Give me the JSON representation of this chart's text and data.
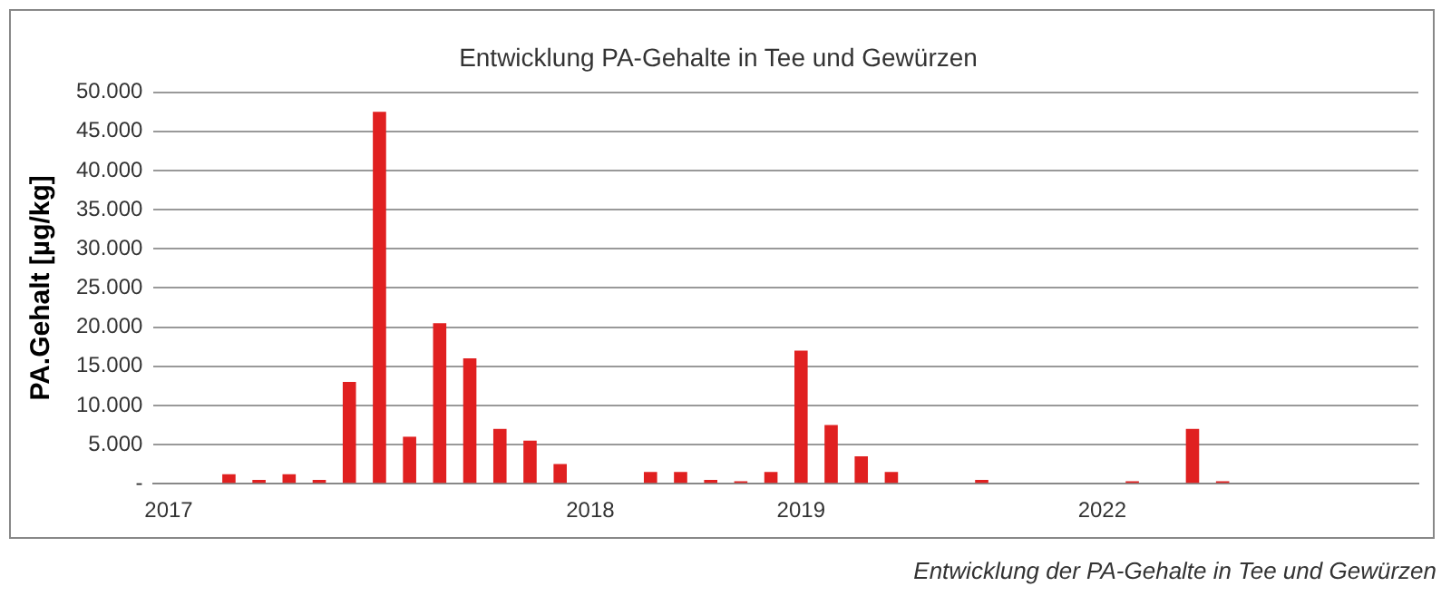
{
  "chart_data": {
    "type": "bar",
    "title": "Entwicklung PA-Gehalte in Tee und Gewürzen",
    "ylabel": "PA.Gehalt [µg/kg]",
    "categories": [
      "2017",
      null,
      null,
      null,
      null,
      null,
      null,
      null,
      null,
      null,
      null,
      null,
      null,
      null,
      "2018",
      null,
      null,
      null,
      null,
      null,
      null,
      "2019",
      null,
      null,
      null,
      null,
      null,
      null,
      null,
      null,
      null,
      "2022",
      null,
      null,
      null,
      null,
      null,
      null,
      null,
      null,
      null,
      null
    ],
    "values": [
      0,
      0,
      1200,
      500,
      1200,
      500,
      13000,
      47500,
      6000,
      20500,
      16000,
      7000,
      5500,
      2500,
      0,
      0,
      1500,
      1500,
      500,
      300,
      1500,
      17000,
      7500,
      3500,
      1500,
      0,
      0,
      500,
      0,
      0,
      0,
      0,
      300,
      0,
      7000,
      300,
      0,
      0,
      0,
      0,
      0,
      0
    ],
    "color": "#e02020",
    "ylim": [
      0,
      50000
    ],
    "yticks": [
      {
        "value": 0,
        "label": "-"
      },
      {
        "value": 5000,
        "label": "5.000"
      },
      {
        "value": 10000,
        "label": "10.000"
      },
      {
        "value": 15000,
        "label": "15.000"
      },
      {
        "value": 20000,
        "label": "20.000"
      },
      {
        "value": 25000,
        "label": "25.000"
      },
      {
        "value": 30000,
        "label": "30.000"
      },
      {
        "value": 35000,
        "label": "35.000"
      },
      {
        "value": 40000,
        "label": "40.000"
      },
      {
        "value": 45000,
        "label": "45.000"
      },
      {
        "value": 50000,
        "label": "50.000"
      }
    ],
    "grid": "y",
    "annotations": [
      "Entwicklung der PA-Gehalte in Tee und Gewürzen"
    ]
  }
}
